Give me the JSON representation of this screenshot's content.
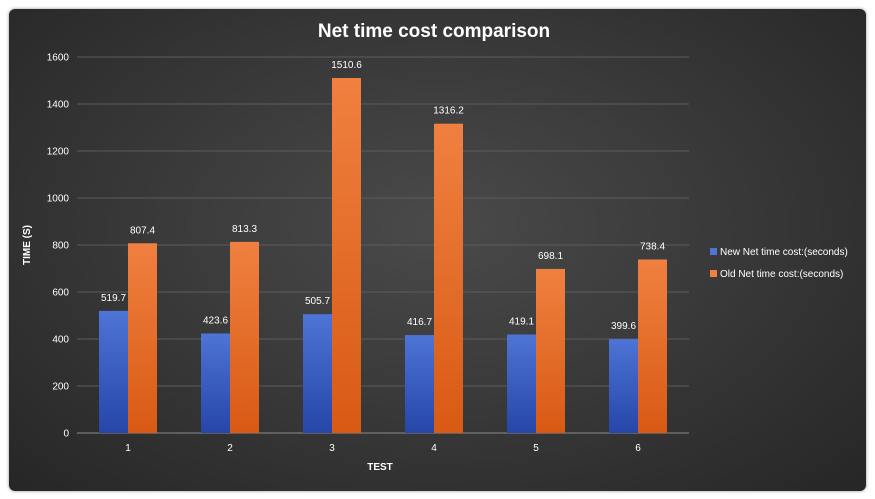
{
  "chart_data": {
    "type": "bar",
    "title": "Net time cost comparison",
    "xlabel": "TEST",
    "ylabel": "TIME (S)",
    "categories": [
      "1",
      "2",
      "3",
      "4",
      "5",
      "6"
    ],
    "series": [
      {
        "name": "New Net time cost:(seconds)",
        "values": [
          519.7,
          423.6,
          505.7,
          416.7,
          419.1,
          399.6
        ],
        "labels": [
          "519.7",
          "423.6",
          "505.7",
          "416.7",
          "419.1",
          "399.6"
        ],
        "color_top": "#4d74d6",
        "color_bottom": "#2646a8"
      },
      {
        "name": "Old Net time cost:(seconds)",
        "values": [
          807.4,
          813.3,
          1510.6,
          1316.2,
          698.1,
          738.4
        ],
        "labels": [
          "807.4",
          "813.3",
          "1510.6",
          "1316.2",
          "698.1",
          "738.4"
        ],
        "color_top": "#f08040",
        "color_bottom": "#d85a14"
      }
    ],
    "ylim": [
      0,
      1600
    ],
    "yticks": [
      0,
      200,
      400,
      600,
      800,
      1000,
      1200,
      1400,
      1600
    ],
    "grid": true,
    "legend_position": "right"
  }
}
